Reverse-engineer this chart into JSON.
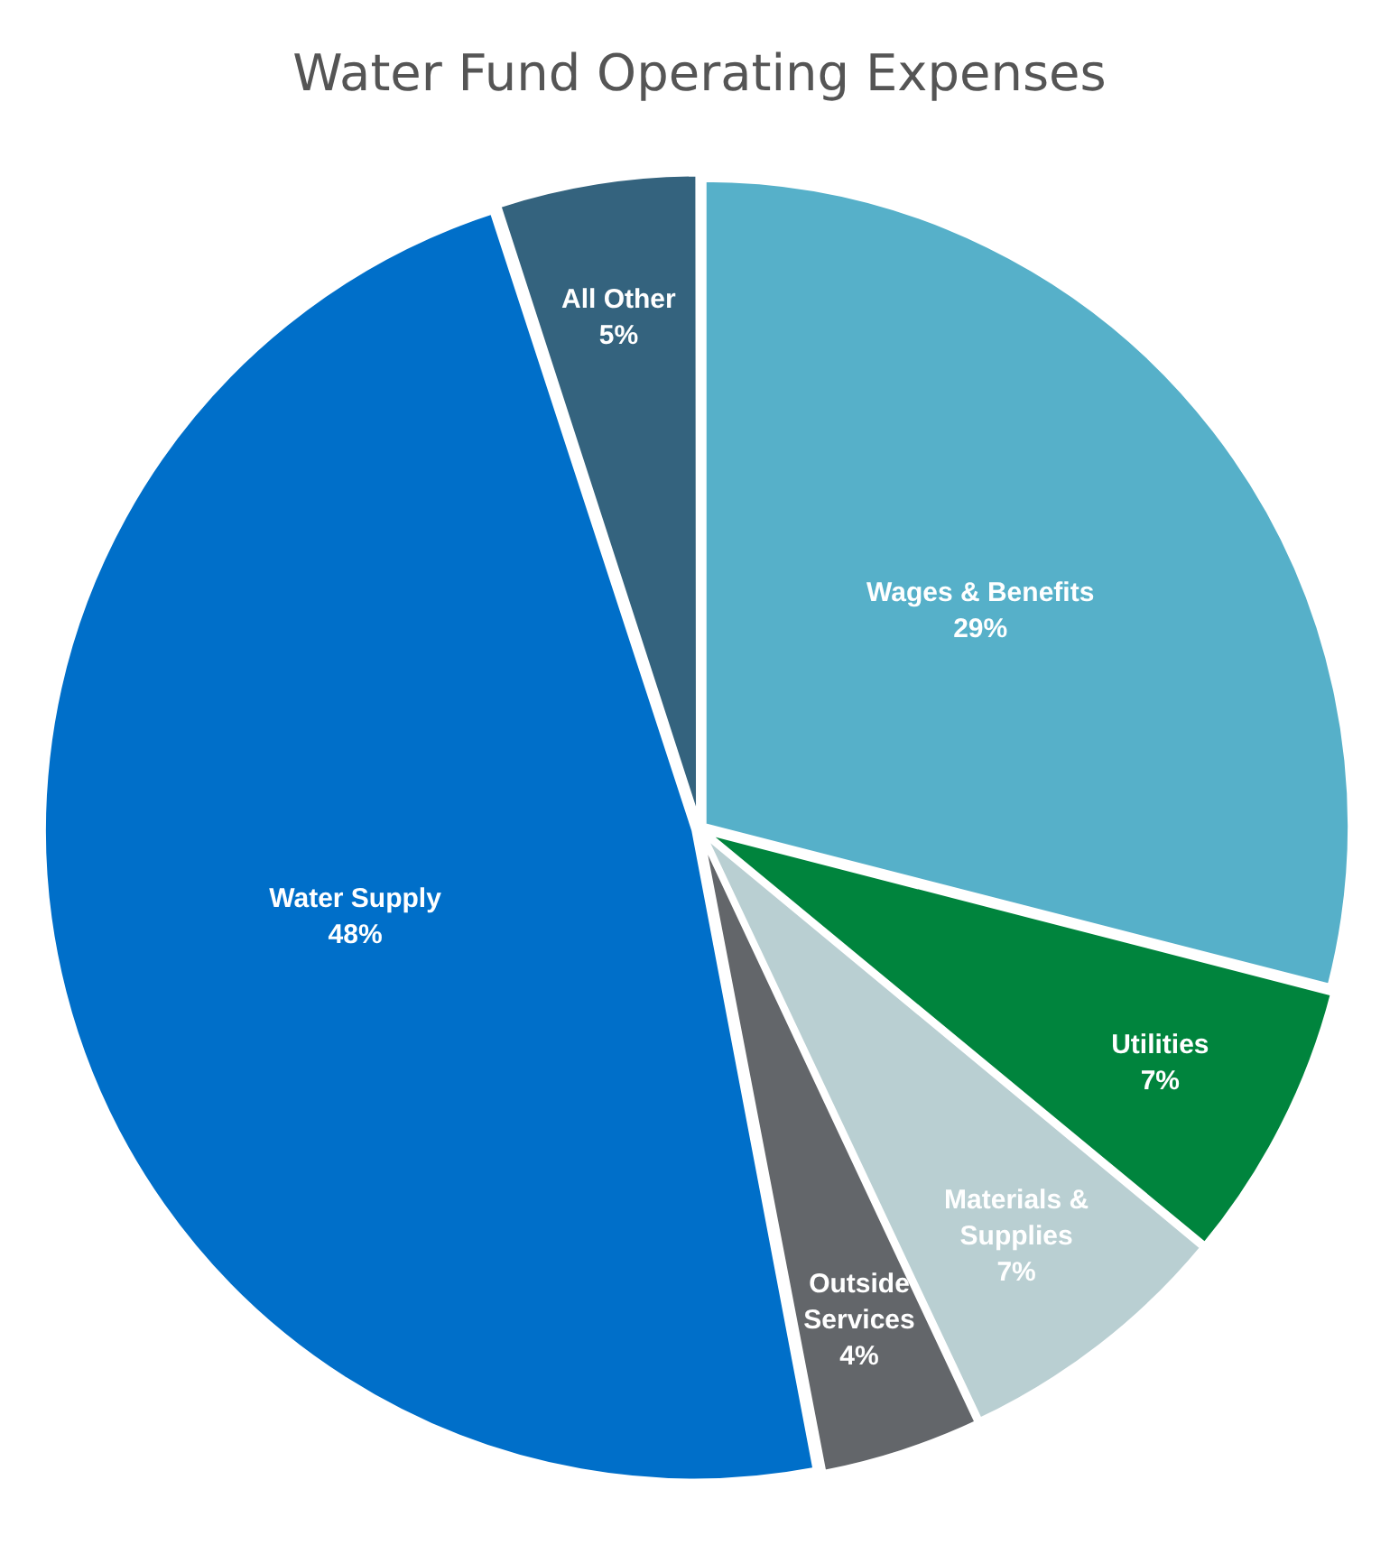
{
  "chart_data": {
    "type": "pie",
    "title": "Water Fund Operating Expenses",
    "categories": [
      "Wages & Benefits",
      "Utilities",
      "Materials & Supplies",
      "Outside Services",
      "Water Supply",
      "All Other"
    ],
    "values": [
      29,
      7,
      7,
      4,
      48,
      5
    ],
    "value_labels": [
      "29%",
      "7%",
      "7%",
      "4%",
      "48%",
      "5%"
    ],
    "colors": [
      "#56b0c9",
      "#00843d",
      "#b9cfd2",
      "#63666a",
      "#006fc9",
      "#34637e"
    ],
    "legend": false
  }
}
